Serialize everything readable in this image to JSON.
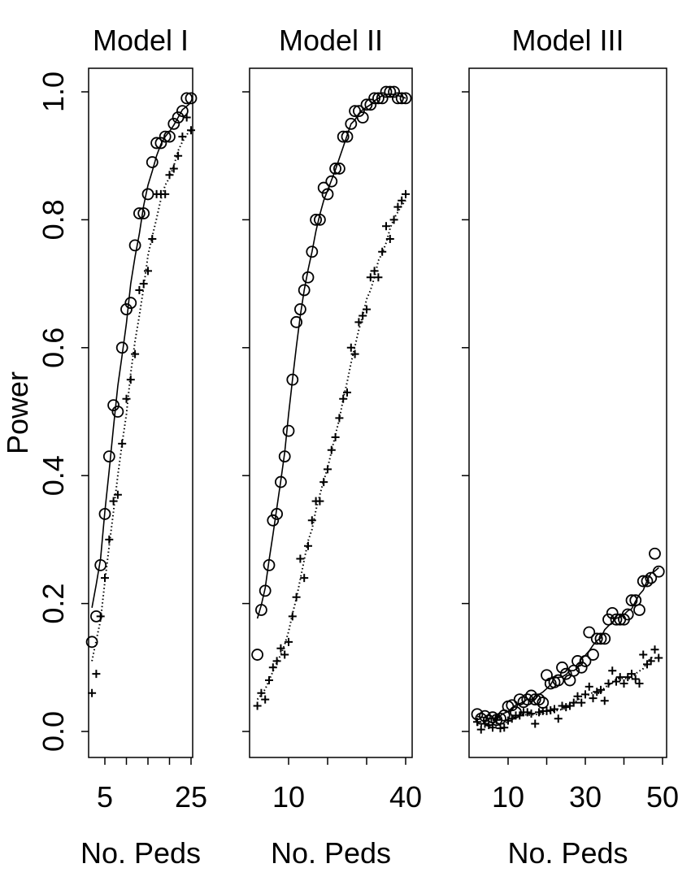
{
  "figure": {
    "ylabel": "Power",
    "yticks": [
      "0.0",
      "0.2",
      "0.4",
      "0.6",
      "0.8",
      "1.0"
    ]
  },
  "chart_data": [
    {
      "type": "line",
      "title": "Model I",
      "xlabel": "No. Peds",
      "ylabel": "Power",
      "xlim": [
        2,
        25
      ],
      "ylim": [
        -0.04,
        1.04
      ],
      "xticks": [
        5,
        10,
        15,
        20,
        25
      ],
      "xtick_labels": [
        "5",
        "",
        "",
        "",
        "25"
      ],
      "yticks": [
        0.0,
        0.2,
        0.4,
        0.6,
        0.8,
        1.0
      ],
      "grid": false,
      "legend": null,
      "series": [
        {
          "name": "circles (solid line)",
          "marker": "circle",
          "line": "solid",
          "x": [
            2,
            3,
            4,
            5,
            6,
            7,
            8,
            9,
            10,
            11,
            12,
            13,
            14,
            15,
            16,
            17,
            18,
            19,
            20,
            21,
            22,
            23,
            24,
            25
          ],
          "y": [
            0.14,
            0.18,
            0.26,
            0.34,
            0.43,
            0.51,
            0.5,
            0.6,
            0.66,
            0.67,
            0.76,
            0.81,
            0.81,
            0.84,
            0.89,
            0.92,
            0.92,
            0.93,
            0.93,
            0.95,
            0.96,
            0.97,
            0.99,
            0.99
          ]
        },
        {
          "name": "crosses (dotted line)",
          "marker": "plus",
          "line": "dotted",
          "x": [
            2,
            3,
            4,
            5,
            6,
            7,
            8,
            9,
            10,
            11,
            12,
            13,
            14,
            15,
            16,
            17,
            18,
            19,
            20,
            21,
            22,
            23,
            24,
            25
          ],
          "y": [
            0.06,
            0.09,
            0.18,
            0.24,
            0.3,
            0.36,
            0.37,
            0.45,
            0.52,
            0.55,
            0.59,
            0.69,
            0.7,
            0.72,
            0.77,
            0.84,
            0.84,
            0.84,
            0.87,
            0.88,
            0.9,
            0.93,
            0.96,
            0.94
          ]
        }
      ]
    },
    {
      "type": "line",
      "title": "Model II",
      "xlabel": "No. Peds",
      "ylabel": "Power",
      "xlim": [
        2,
        40
      ],
      "ylim": [
        -0.04,
        1.04
      ],
      "xticks": [
        10,
        20,
        30,
        40
      ],
      "xtick_labels": [
        "10",
        "",
        "",
        "40"
      ],
      "yticks": [
        0.0,
        0.2,
        0.4,
        0.6,
        0.8,
        1.0
      ],
      "grid": false,
      "legend": null,
      "series": [
        {
          "name": "circles (solid line)",
          "marker": "circle",
          "line": "solid",
          "x": [
            2,
            3,
            4,
            5,
            6,
            7,
            8,
            9,
            10,
            11,
            12,
            13,
            14,
            15,
            16,
            17,
            18,
            19,
            20,
            21,
            22,
            23,
            24,
            25,
            26,
            27,
            28,
            29,
            30,
            31,
            32,
            33,
            34,
            35,
            36,
            37,
            38,
            39,
            40
          ],
          "y": [
            0.12,
            0.19,
            0.22,
            0.26,
            0.33,
            0.34,
            0.39,
            0.43,
            0.47,
            0.55,
            0.64,
            0.66,
            0.69,
            0.71,
            0.75,
            0.8,
            0.8,
            0.85,
            0.84,
            0.86,
            0.88,
            0.88,
            0.93,
            0.93,
            0.95,
            0.97,
            0.97,
            0.96,
            0.98,
            0.98,
            0.99,
            0.99,
            0.99,
            1.0,
            1.0,
            1.0,
            0.99,
            0.99,
            0.99
          ]
        },
        {
          "name": "crosses (dotted line)",
          "marker": "plus",
          "line": "dotted",
          "x": [
            2,
            3,
            4,
            5,
            6,
            7,
            8,
            9,
            10,
            11,
            12,
            13,
            14,
            15,
            16,
            17,
            18,
            19,
            20,
            21,
            22,
            23,
            24,
            25,
            26,
            27,
            28,
            29,
            30,
            31,
            32,
            33,
            34,
            35,
            36,
            37,
            38,
            39,
            40
          ],
          "y": [
            0.04,
            0.06,
            0.05,
            0.08,
            0.1,
            0.11,
            0.13,
            0.12,
            0.14,
            0.18,
            0.21,
            0.27,
            0.24,
            0.29,
            0.33,
            0.36,
            0.36,
            0.39,
            0.41,
            0.44,
            0.46,
            0.49,
            0.52,
            0.53,
            0.6,
            0.59,
            0.64,
            0.65,
            0.66,
            0.71,
            0.72,
            0.71,
            0.75,
            0.79,
            0.77,
            0.8,
            0.82,
            0.83,
            0.84
          ]
        }
      ]
    },
    {
      "type": "line",
      "title": "Model III",
      "xlabel": "No. Peds",
      "ylabel": "Power",
      "xlim": [
        1,
        50
      ],
      "ylim": [
        -0.04,
        1.04
      ],
      "xticks": [
        10,
        20,
        30,
        40,
        50
      ],
      "xtick_labels": [
        "10",
        "",
        "30",
        "",
        "50"
      ],
      "yticks": [
        0.0,
        0.2,
        0.4,
        0.6,
        0.8,
        1.0
      ],
      "grid": false,
      "legend": null,
      "series": [
        {
          "name": "circles (solid line)",
          "marker": "circle",
          "line": "solid",
          "x": [
            2,
            3,
            4,
            5,
            6,
            7,
            8,
            9,
            10,
            11,
            12,
            13,
            14,
            15,
            16,
            17,
            18,
            19,
            20,
            21,
            22,
            23,
            24,
            25,
            26,
            27,
            28,
            29,
            30,
            31,
            32,
            33,
            34,
            35,
            36,
            37,
            38,
            39,
            40,
            41,
            42,
            43,
            44,
            45,
            46,
            47,
            48,
            49
          ],
          "y": [
            0.027,
            0.02,
            0.024,
            0.017,
            0.022,
            0.018,
            0.02,
            0.025,
            0.039,
            0.041,
            0.03,
            0.05,
            0.046,
            0.05,
            0.056,
            0.05,
            0.05,
            0.045,
            0.088,
            0.075,
            0.077,
            0.08,
            0.1,
            0.09,
            0.08,
            0.095,
            0.11,
            0.1,
            0.11,
            0.155,
            0.12,
            0.145,
            0.145,
            0.145,
            0.175,
            0.185,
            0.175,
            0.175,
            0.175,
            0.183,
            0.205,
            0.205,
            0.19,
            0.235,
            0.235,
            0.24,
            0.278,
            0.25
          ]
        },
        {
          "name": "crosses (dotted line)",
          "marker": "plus",
          "line": "dotted",
          "x": [
            2,
            3,
            4,
            5,
            6,
            7,
            8,
            9,
            10,
            11,
            12,
            13,
            14,
            15,
            16,
            17,
            18,
            19,
            20,
            21,
            22,
            23,
            24,
            25,
            26,
            27,
            28,
            29,
            30,
            31,
            32,
            33,
            34,
            35,
            36,
            37,
            38,
            39,
            40,
            41,
            42,
            43,
            44,
            45,
            46,
            47,
            48,
            49
          ],
          "y": [
            0.015,
            0.003,
            0.012,
            0.01,
            0.006,
            0.018,
            0.005,
            0.006,
            0.017,
            0.02,
            0.025,
            0.025,
            0.03,
            0.03,
            0.028,
            0.012,
            0.03,
            0.032,
            0.032,
            0.033,
            0.035,
            0.02,
            0.04,
            0.038,
            0.04,
            0.045,
            0.055,
            0.045,
            0.058,
            0.07,
            0.052,
            0.062,
            0.065,
            0.048,
            0.075,
            0.095,
            0.078,
            0.085,
            0.075,
            0.085,
            0.09,
            0.082,
            0.075,
            0.12,
            0.105,
            0.11,
            0.128,
            0.115
          ]
        }
      ]
    }
  ]
}
